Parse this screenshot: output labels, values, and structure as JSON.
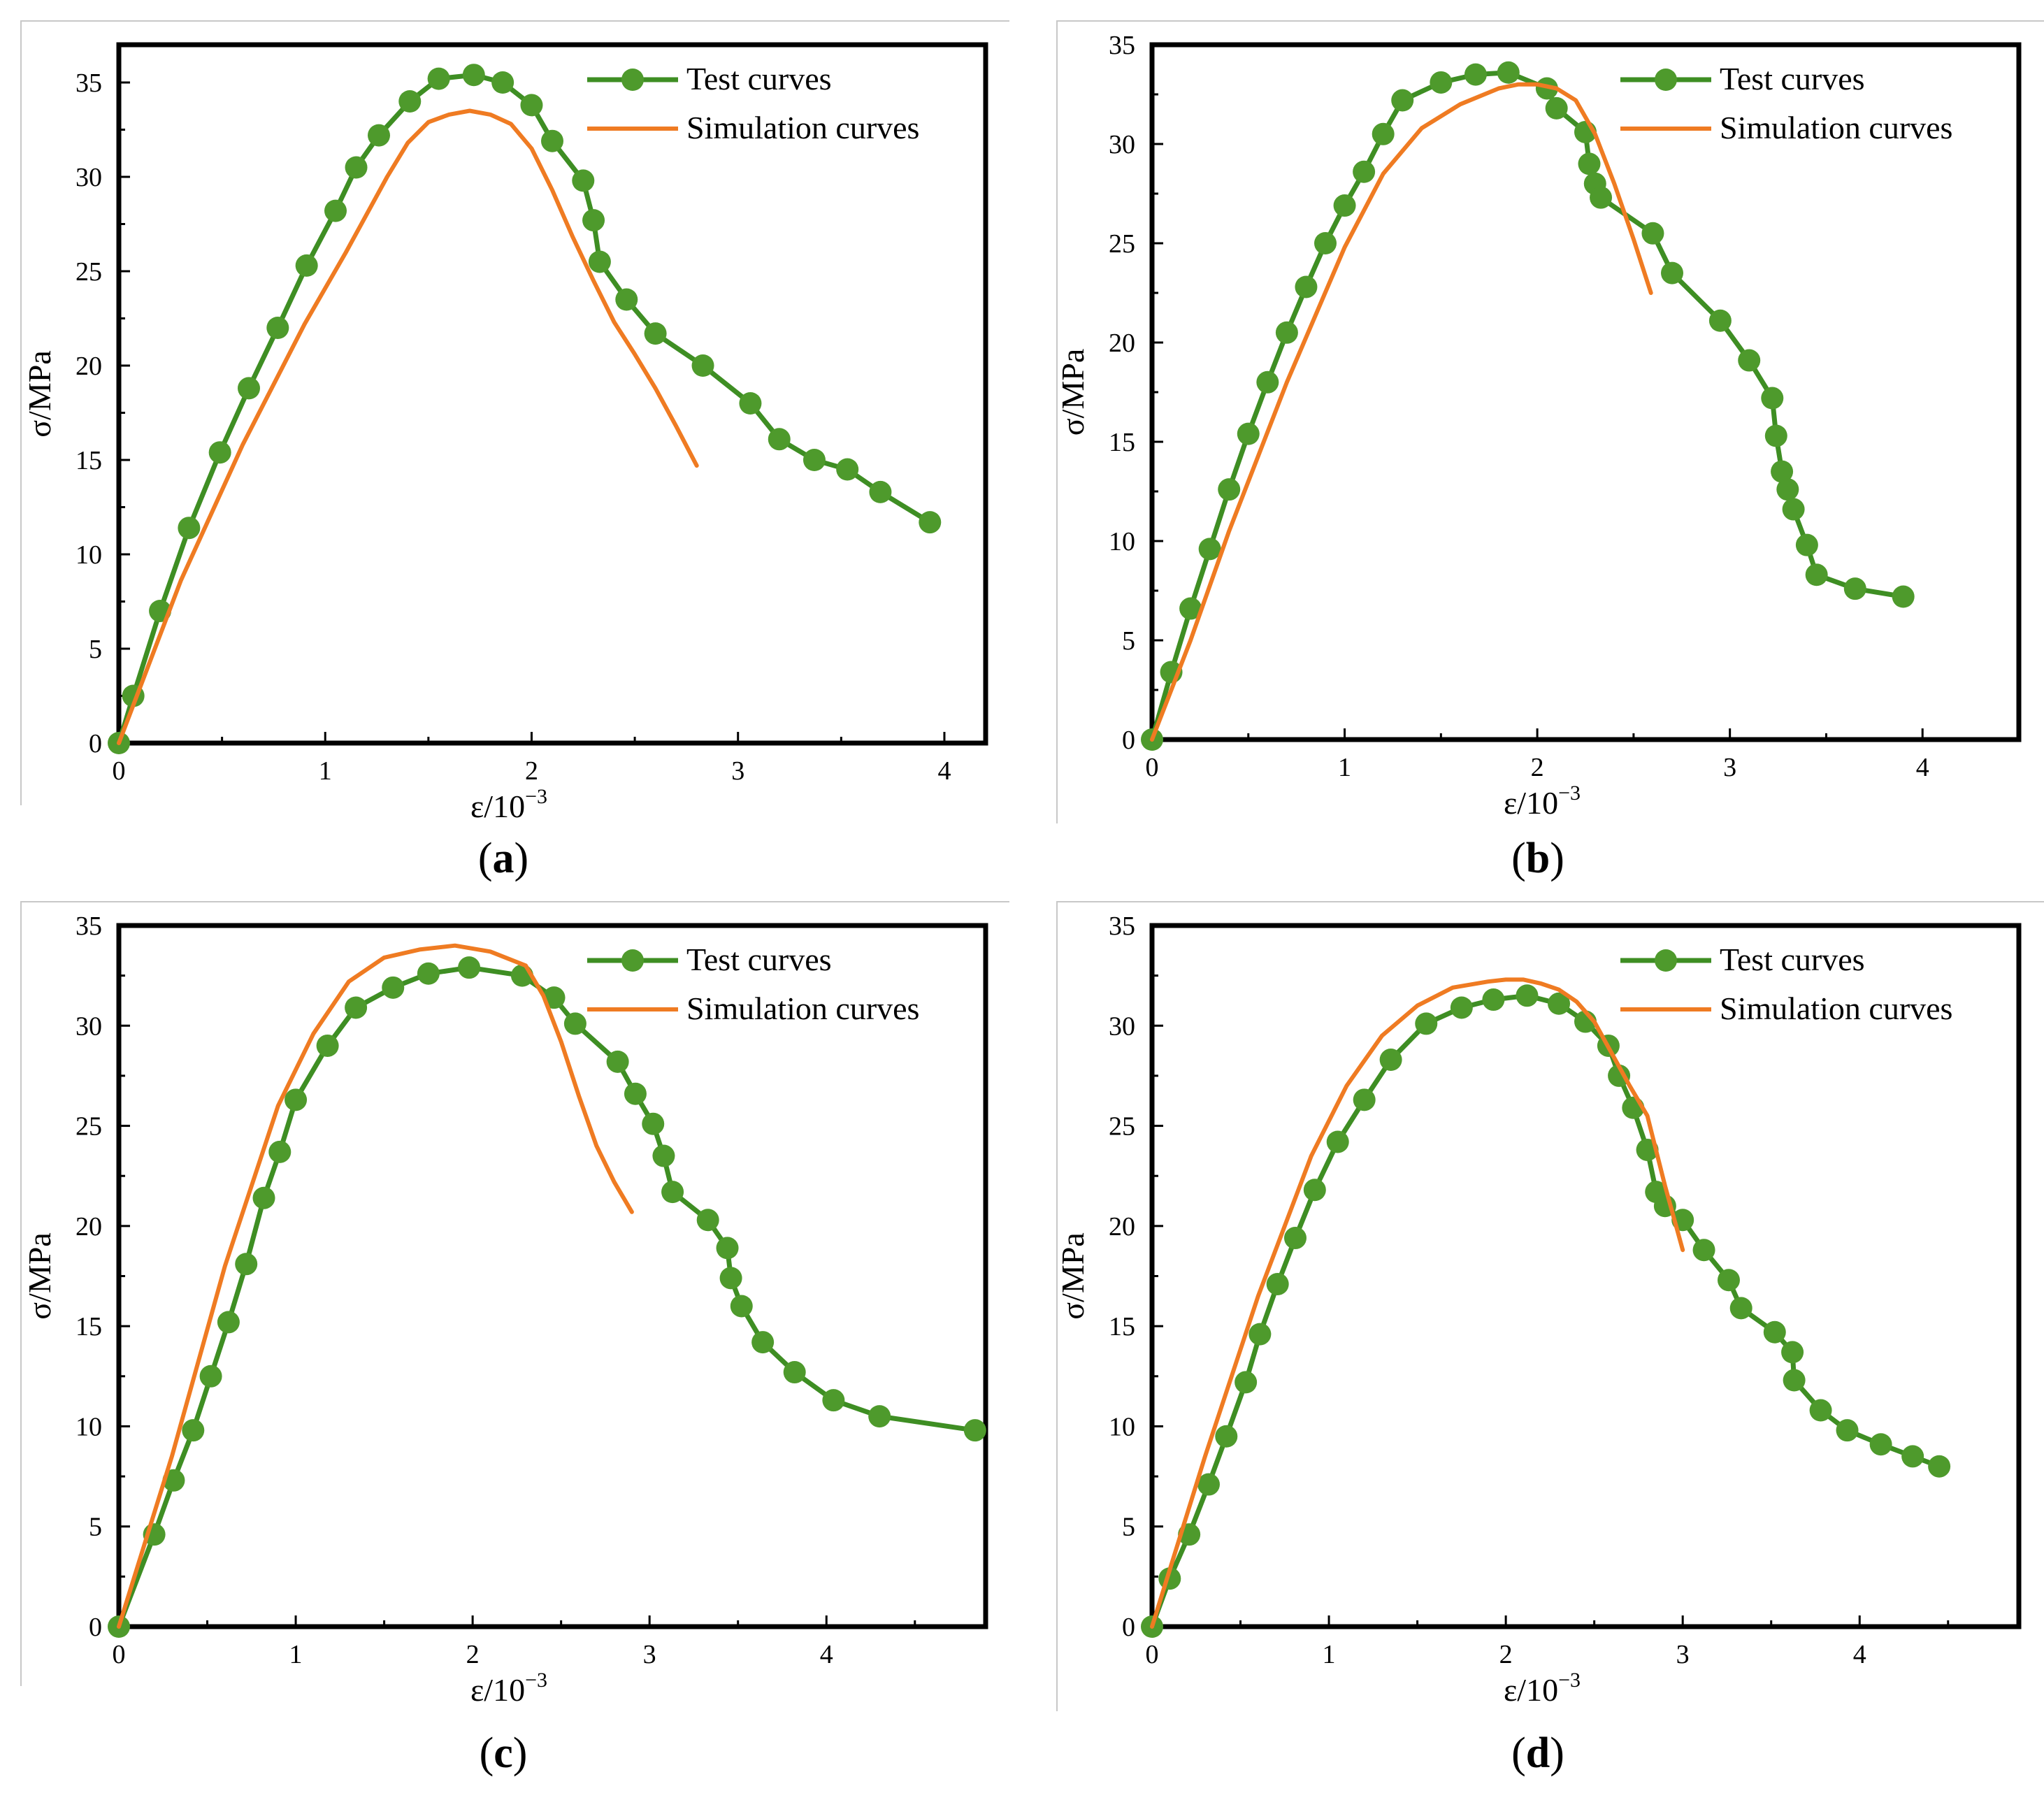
{
  "colors": {
    "test": "#3e8e23",
    "test_marker": "#4e9a2c",
    "simulation": "#ef7b22",
    "frame": "#000000",
    "panel_border": "#c8c8c8"
  },
  "chart_data": [
    {
      "type": "line",
      "panel_label": "a",
      "xlabel": "ε/10",
      "xlabel_exponent": "−3",
      "ylabel": "σ/MPa",
      "xlim": [
        0,
        4.2
      ],
      "ylim": [
        0,
        37
      ],
      "xticks": [
        "0",
        "1",
        "2",
        "3",
        "4"
      ],
      "yticks": [
        "0",
        "5",
        "10",
        "15",
        "20",
        "25",
        "30",
        "35"
      ],
      "legend": {
        "position": "top-right",
        "entries": [
          "Test curves",
          "Simulation curves"
        ]
      },
      "series": [
        {
          "name": "Test curves",
          "marker": "circle",
          "x": [
            0,
            0.07,
            0.2,
            0.34,
            0.49,
            0.63,
            0.77,
            0.91,
            1.05,
            1.15,
            1.26,
            1.41,
            1.55,
            1.72,
            1.86,
            2.0,
            2.1,
            2.25,
            2.3,
            2.33,
            2.46,
            2.6,
            2.83,
            3.06,
            3.2,
            3.37,
            3.53,
            3.69,
            3.93
          ],
          "y": [
            0,
            2.5,
            7.0,
            11.4,
            15.4,
            18.8,
            22.0,
            25.3,
            28.2,
            30.5,
            32.2,
            34.0,
            35.2,
            35.4,
            35.0,
            33.8,
            31.9,
            29.8,
            27.7,
            25.5,
            23.5,
            21.7,
            20.0,
            18.0,
            16.1,
            15.0,
            14.5,
            13.3,
            11.7
          ]
        },
        {
          "name": "Simulation curves",
          "marker": "none",
          "x": [
            0,
            0.3,
            0.6,
            0.9,
            1.1,
            1.3,
            1.4,
            1.5,
            1.6,
            1.7,
            1.8,
            1.9,
            2.0,
            2.1,
            2.2,
            2.3,
            2.4,
            2.5,
            2.6,
            2.7,
            2.8
          ],
          "y": [
            0,
            8.6,
            15.8,
            22.2,
            26.0,
            30.0,
            31.8,
            32.9,
            33.3,
            33.5,
            33.3,
            32.8,
            31.5,
            29.3,
            26.8,
            24.5,
            22.3,
            20.6,
            18.8,
            16.8,
            14.7
          ]
        }
      ]
    },
    {
      "type": "line",
      "panel_label": "b",
      "xlabel": "ε/10",
      "xlabel_exponent": "−3",
      "ylabel": "σ/MPa",
      "xlim": [
        0,
        4.5
      ],
      "ylim": [
        0,
        35
      ],
      "xticks": [
        "0",
        "1",
        "2",
        "3",
        "4"
      ],
      "yticks": [
        "0",
        "5",
        "10",
        "15",
        "20",
        "25",
        "30",
        "35"
      ],
      "legend": {
        "position": "top-right",
        "entries": [
          "Test curves",
          "Simulation curves"
        ]
      },
      "series": [
        {
          "name": "Test curves",
          "marker": "circle",
          "x": [
            0,
            0.1,
            0.2,
            0.3,
            0.4,
            0.5,
            0.6,
            0.7,
            0.8,
            0.9,
            1.0,
            1.1,
            1.2,
            1.3,
            1.5,
            1.68,
            1.85,
            2.05,
            2.1,
            2.25,
            2.27,
            2.3,
            2.33,
            2.6,
            2.7,
            2.95,
            3.1,
            3.22,
            3.24,
            3.27,
            3.3,
            3.33,
            3.4,
            3.45,
            3.65,
            3.9
          ],
          "y": [
            0,
            3.4,
            6.6,
            9.6,
            12.6,
            15.4,
            18.0,
            20.5,
            22.8,
            25.0,
            26.9,
            28.6,
            30.5,
            32.2,
            33.1,
            33.5,
            33.6,
            32.8,
            31.8,
            30.6,
            29.0,
            28.0,
            27.3,
            25.5,
            23.5,
            21.1,
            19.1,
            17.2,
            15.3,
            13.5,
            12.6,
            11.6,
            9.8,
            8.3,
            7.6,
            7.2
          ]
        },
        {
          "name": "Simulation curves",
          "marker": "none",
          "x": [
            0,
            0.2,
            0.4,
            0.7,
            1.0,
            1.2,
            1.4,
            1.6,
            1.8,
            1.9,
            2.0,
            2.1,
            2.2,
            2.3,
            2.4,
            2.5,
            2.59
          ],
          "y": [
            0,
            5.0,
            10.5,
            18.0,
            24.8,
            28.5,
            30.8,
            32.0,
            32.8,
            33.0,
            33.0,
            32.8,
            32.2,
            30.5,
            28.0,
            25.2,
            22.5
          ]
        }
      ]
    },
    {
      "type": "line",
      "panel_label": "c",
      "xlabel": "ε/10",
      "xlabel_exponent": "−3",
      "ylabel": "σ/MPa",
      "xlim": [
        0,
        4.9
      ],
      "ylim": [
        0,
        35
      ],
      "xticks": [
        "0",
        "1",
        "2",
        "3",
        "4"
      ],
      "yticks": [
        "0",
        "5",
        "10",
        "15",
        "20",
        "25",
        "30",
        "35"
      ],
      "legend": {
        "position": "top-right",
        "entries": [
          "Test curves",
          "Simulation curves"
        ]
      },
      "series": [
        {
          "name": "Test curves",
          "marker": "circle",
          "x": [
            0,
            0.2,
            0.31,
            0.42,
            0.52,
            0.62,
            0.72,
            0.82,
            0.91,
            1.0,
            1.18,
            1.34,
            1.55,
            1.75,
            1.98,
            2.28,
            2.46,
            2.58,
            2.82,
            2.92,
            3.02,
            3.08,
            3.13,
            3.33,
            3.44,
            3.46,
            3.52,
            3.64,
            3.82,
            4.04,
            4.3,
            4.84
          ],
          "y": [
            0,
            4.6,
            7.3,
            9.8,
            12.5,
            15.2,
            18.1,
            21.4,
            23.7,
            26.3,
            29.0,
            30.9,
            31.9,
            32.6,
            32.9,
            32.5,
            31.4,
            30.1,
            28.2,
            26.6,
            25.1,
            23.5,
            21.7,
            20.3,
            18.9,
            17.4,
            16.0,
            14.2,
            12.7,
            11.3,
            10.5,
            9.8
          ]
        },
        {
          "name": "Simulation curves",
          "marker": "none",
          "x": [
            0,
            0.3,
            0.6,
            0.9,
            1.1,
            1.3,
            1.5,
            1.7,
            1.9,
            2.1,
            2.3,
            2.4,
            2.5,
            2.6,
            2.7,
            2.8,
            2.9
          ],
          "y": [
            0,
            8.5,
            18.0,
            26.0,
            29.6,
            32.2,
            33.4,
            33.8,
            34.0,
            33.7,
            33.0,
            31.5,
            29.2,
            26.5,
            24.0,
            22.2,
            20.7
          ]
        }
      ]
    },
    {
      "type": "line",
      "panel_label": "d",
      "xlabel": "ε/10",
      "xlabel_exponent": "−3",
      "ylabel": "σ/MPa",
      "xlim": [
        0,
        4.9
      ],
      "ylim": [
        0,
        35
      ],
      "xticks": [
        "0",
        "1",
        "2",
        "3",
        "4"
      ],
      "yticks": [
        "0",
        "5",
        "10",
        "15",
        "20",
        "25",
        "30",
        "35"
      ],
      "legend": {
        "position": "top-right",
        "entries": [
          "Test curves",
          "Simulation curves"
        ]
      },
      "series": [
        {
          "name": "Test curves",
          "marker": "circle",
          "x": [
            0,
            0.1,
            0.21,
            0.32,
            0.42,
            0.53,
            0.61,
            0.71,
            0.81,
            0.92,
            1.05,
            1.2,
            1.35,
            1.55,
            1.75,
            1.93,
            2.12,
            2.3,
            2.45,
            2.58,
            2.64,
            2.72,
            2.8,
            2.85,
            2.9,
            3.0,
            3.12,
            3.26,
            3.33,
            3.52,
            3.62,
            3.63,
            3.78,
            3.93,
            4.12,
            4.3,
            4.45
          ],
          "y": [
            0,
            2.4,
            4.6,
            7.1,
            9.5,
            12.2,
            14.6,
            17.1,
            19.4,
            21.8,
            24.2,
            26.3,
            28.3,
            30.1,
            30.9,
            31.3,
            31.5,
            31.1,
            30.2,
            29.0,
            27.5,
            25.9,
            23.8,
            21.7,
            21.0,
            20.3,
            18.8,
            17.3,
            15.9,
            14.7,
            13.7,
            12.3,
            10.8,
            9.8,
            9.1,
            8.5,
            8.0
          ]
        },
        {
          "name": "Simulation curves",
          "marker": "none",
          "x": [
            0,
            0.3,
            0.6,
            0.9,
            1.1,
            1.3,
            1.5,
            1.7,
            1.9,
            2.0,
            2.1,
            2.2,
            2.3,
            2.4,
            2.5,
            2.6,
            2.7,
            2.8,
            2.9,
            3.0
          ],
          "y": [
            0,
            8.5,
            16.5,
            23.5,
            27.0,
            29.5,
            31.0,
            31.9,
            32.2,
            32.3,
            32.3,
            32.1,
            31.8,
            31.2,
            30.2,
            28.6,
            27.0,
            25.5,
            22.0,
            18.8
          ]
        }
      ]
    }
  ]
}
